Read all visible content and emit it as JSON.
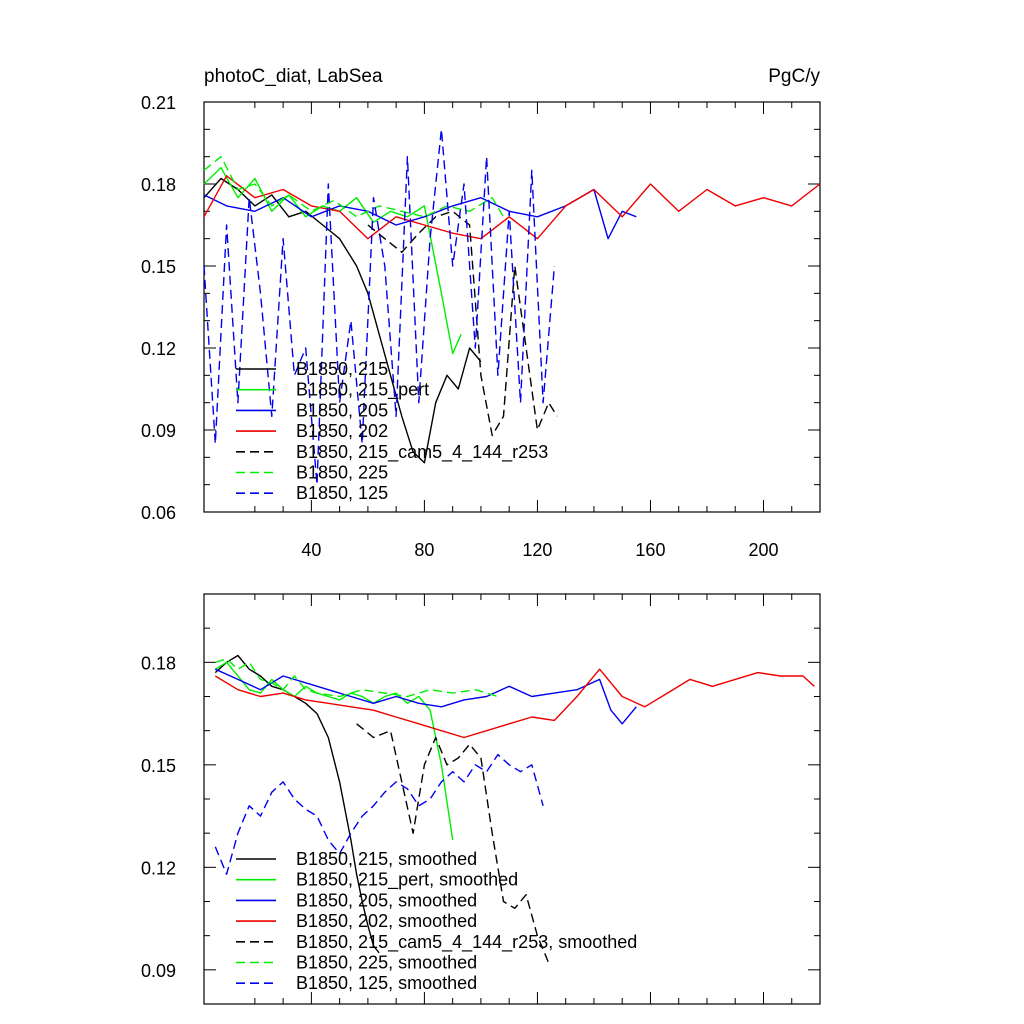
{
  "chart_data": [
    {
      "type": "line",
      "title": "photoC_diat, LabSea",
      "units": "PgC/y",
      "xlabel": "",
      "ylabel": "",
      "xlim": [
        2,
        220
      ],
      "ylim": [
        0.06,
        0.21
      ],
      "xticks": [
        "40",
        "80",
        "120",
        "160",
        "200"
      ],
      "yticks": [
        "0.06",
        "0.09",
        "0.12",
        "0.15",
        "0.18",
        "0.21"
      ],
      "legend_position": "bottom-left",
      "series": [
        {
          "name": "B1850, 215",
          "label": "B1850, 215",
          "color": "#000000",
          "dash": "solid",
          "x": [
            2,
            8,
            14,
            20,
            26,
            32,
            38,
            44,
            50,
            56,
            60,
            64,
            68,
            72,
            76,
            80,
            84,
            88,
            92,
            96,
            100
          ],
          "values": [
            0.175,
            0.182,
            0.178,
            0.172,
            0.176,
            0.168,
            0.17,
            0.165,
            0.16,
            0.15,
            0.14,
            0.125,
            0.11,
            0.095,
            0.082,
            0.078,
            0.1,
            0.11,
            0.105,
            0.12,
            0.115
          ]
        },
        {
          "name": "B1850, 215_pert",
          "label": "B1850, 215_pert",
          "color": "#00ee00",
          "dash": "solid",
          "x": [
            2,
            8,
            14,
            20,
            26,
            32,
            38,
            44,
            50,
            56,
            62,
            68,
            74,
            80,
            86,
            90,
            93
          ],
          "values": [
            0.18,
            0.186,
            0.175,
            0.182,
            0.17,
            0.176,
            0.168,
            0.172,
            0.17,
            0.175,
            0.166,
            0.17,
            0.168,
            0.172,
            0.14,
            0.118,
            0.125
          ]
        },
        {
          "name": "B1850, 205",
          "label": "B1850, 205",
          "color": "#0000ee",
          "dash": "solid",
          "x": [
            2,
            10,
            20,
            30,
            40,
            50,
            60,
            70,
            80,
            90,
            100,
            110,
            120,
            130,
            140,
            145,
            150,
            155
          ],
          "values": [
            0.176,
            0.172,
            0.17,
            0.175,
            0.168,
            0.172,
            0.17,
            0.165,
            0.168,
            0.172,
            0.175,
            0.17,
            0.168,
            0.172,
            0.178,
            0.16,
            0.17,
            0.168
          ]
        },
        {
          "name": "B1850, 202",
          "label": "B1850, 202",
          "color": "#ee0000",
          "dash": "solid",
          "x": [
            2,
            10,
            20,
            30,
            40,
            50,
            60,
            70,
            80,
            90,
            100,
            110,
            120,
            130,
            140,
            150,
            160,
            170,
            180,
            190,
            200,
            210,
            220
          ],
          "values": [
            0.168,
            0.183,
            0.175,
            0.178,
            0.172,
            0.17,
            0.16,
            0.168,
            0.165,
            0.162,
            0.16,
            0.168,
            0.16,
            0.172,
            0.178,
            0.168,
            0.18,
            0.17,
            0.178,
            0.172,
            0.175,
            0.172,
            0.18
          ]
        },
        {
          "name": "B1850, 215_cam5_4_144_r253",
          "label": "B1850, 215_cam5_4_144_r253",
          "color": "#000000",
          "dash": "dashed",
          "x": [
            60,
            66,
            72,
            78,
            84,
            90,
            96,
            100,
            104,
            108,
            112,
            116,
            120,
            124,
            127
          ],
          "values": [
            0.165,
            0.16,
            0.155,
            0.162,
            0.168,
            0.17,
            0.165,
            0.11,
            0.088,
            0.095,
            0.15,
            0.12,
            0.09,
            0.1,
            0.095
          ]
        },
        {
          "name": "B1850, 225",
          "label": "B1850, 225",
          "color": "#00ee00",
          "dash": "dashed",
          "x": [
            2,
            8,
            14,
            20,
            26,
            32,
            40,
            48,
            56,
            64,
            72,
            80,
            88,
            96,
            104,
            108
          ],
          "values": [
            0.185,
            0.19,
            0.178,
            0.18,
            0.172,
            0.176,
            0.17,
            0.174,
            0.168,
            0.172,
            0.17,
            0.168,
            0.172,
            0.17,
            0.175,
            0.168
          ]
        },
        {
          "name": "B1850, 125",
          "label": "B1850, 125",
          "color": "#0000ee",
          "dash": "dashed",
          "x": [
            2,
            6,
            10,
            14,
            18,
            22,
            26,
            30,
            34,
            38,
            42,
            46,
            50,
            54,
            58,
            62,
            66,
            70,
            74,
            78,
            82,
            86,
            90,
            94,
            98,
            102,
            106,
            110,
            114,
            118,
            122,
            126
          ],
          "values": [
            0.15,
            0.085,
            0.165,
            0.1,
            0.175,
            0.14,
            0.095,
            0.16,
            0.11,
            0.12,
            0.07,
            0.18,
            0.1,
            0.13,
            0.085,
            0.175,
            0.15,
            0.095,
            0.19,
            0.1,
            0.16,
            0.2,
            0.15,
            0.18,
            0.12,
            0.19,
            0.11,
            0.17,
            0.1,
            0.185,
            0.1,
            0.15
          ]
        }
      ]
    },
    {
      "type": "line",
      "title": "",
      "xlabel": "",
      "ylabel": "",
      "xlim": [
        2,
        220
      ],
      "ylim": [
        0.08,
        0.2
      ],
      "yticks": [
        "0.09",
        "0.12",
        "0.15",
        "0.18"
      ],
      "legend_position": "bottom-left",
      "series": [
        {
          "name": "B1850, 215, smoothed",
          "label": "B1850, 215, smoothed",
          "color": "#000000",
          "dash": "solid",
          "x": [
            6,
            10,
            14,
            18,
            22,
            26,
            30,
            34,
            38,
            42,
            46,
            50,
            54,
            56,
            58,
            60,
            62,
            64
          ],
          "values": [
            0.177,
            0.18,
            0.182,
            0.178,
            0.176,
            0.173,
            0.172,
            0.17,
            0.168,
            0.165,
            0.158,
            0.145,
            0.128,
            0.118,
            0.11,
            0.103,
            0.097,
            0.095
          ]
        },
        {
          "name": "B1850, 215_pert, smoothed",
          "label": "B1850, 215_pert, smoothed",
          "color": "#00ee00",
          "dash": "solid",
          "x": [
            6,
            10,
            14,
            18,
            22,
            26,
            30,
            34,
            38,
            42,
            46,
            50,
            54,
            58,
            62,
            66,
            70,
            74,
            78,
            82,
            86,
            90
          ],
          "values": [
            0.178,
            0.18,
            0.176,
            0.172,
            0.171,
            0.175,
            0.172,
            0.17,
            0.173,
            0.171,
            0.17,
            0.169,
            0.171,
            0.17,
            0.168,
            0.17,
            0.171,
            0.168,
            0.17,
            0.166,
            0.15,
            0.128
          ]
        },
        {
          "name": "B1850, 205, smoothed",
          "label": "B1850, 205, smoothed",
          "color": "#0000ee",
          "dash": "solid",
          "x": [
            6,
            14,
            22,
            30,
            38,
            46,
            54,
            62,
            70,
            78,
            86,
            94,
            102,
            110,
            118,
            126,
            134,
            142,
            146,
            150,
            155
          ],
          "values": [
            0.178,
            0.175,
            0.172,
            0.176,
            0.174,
            0.172,
            0.17,
            0.168,
            0.17,
            0.168,
            0.167,
            0.169,
            0.17,
            0.173,
            0.17,
            0.171,
            0.172,
            0.175,
            0.166,
            0.162,
            0.167
          ]
        },
        {
          "name": "B1850, 202, smoothed",
          "label": "B1850, 202, smoothed",
          "color": "#ee0000",
          "dash": "solid",
          "x": [
            6,
            14,
            22,
            30,
            38,
            46,
            54,
            62,
            70,
            78,
            86,
            94,
            102,
            110,
            118,
            126,
            134,
            142,
            150,
            158,
            166,
            174,
            182,
            190,
            198,
            206,
            214,
            218
          ],
          "values": [
            0.176,
            0.172,
            0.17,
            0.171,
            0.169,
            0.168,
            0.167,
            0.166,
            0.164,
            0.162,
            0.16,
            0.158,
            0.16,
            0.162,
            0.164,
            0.163,
            0.17,
            0.178,
            0.17,
            0.167,
            0.171,
            0.175,
            0.173,
            0.175,
            0.177,
            0.176,
            0.176,
            0.173
          ]
        },
        {
          "name": "B1850, 215_cam5_4_144_r253, smoothed",
          "label": "B1850, 215_cam5_4_144_r253, smoothed",
          "color": "#000000",
          "dash": "dashed",
          "x": [
            56,
            62,
            68,
            72,
            76,
            80,
            84,
            88,
            92,
            96,
            100,
            104,
            108,
            112,
            116,
            120,
            124
          ],
          "values": [
            0.162,
            0.158,
            0.16,
            0.145,
            0.13,
            0.15,
            0.158,
            0.15,
            0.152,
            0.156,
            0.152,
            0.13,
            0.11,
            0.108,
            0.112,
            0.1,
            0.092
          ]
        },
        {
          "name": "B1850, 225, smoothed",
          "label": "B1850, 225, smoothed",
          "color": "#00ee00",
          "dash": "dashed",
          "x": [
            6,
            10,
            14,
            18,
            22,
            26,
            30,
            34,
            38,
            42,
            50,
            58,
            66,
            74,
            82,
            90,
            98,
            106
          ],
          "values": [
            0.18,
            0.181,
            0.178,
            0.18,
            0.175,
            0.174,
            0.172,
            0.176,
            0.172,
            0.171,
            0.17,
            0.172,
            0.171,
            0.17,
            0.172,
            0.171,
            0.172,
            0.17
          ]
        },
        {
          "name": "B1850, 125, smoothed",
          "label": "B1850, 125, smoothed",
          "color": "#0000ee",
          "dash": "dashed",
          "x": [
            6,
            10,
            14,
            18,
            22,
            26,
            30,
            34,
            38,
            42,
            46,
            50,
            54,
            58,
            62,
            66,
            70,
            74,
            78,
            82,
            86,
            90,
            94,
            98,
            102,
            106,
            110,
            114,
            118,
            122
          ],
          "values": [
            0.126,
            0.118,
            0.13,
            0.138,
            0.135,
            0.142,
            0.145,
            0.14,
            0.137,
            0.135,
            0.128,
            0.124,
            0.13,
            0.135,
            0.138,
            0.142,
            0.145,
            0.143,
            0.138,
            0.14,
            0.145,
            0.148,
            0.145,
            0.15,
            0.148,
            0.153,
            0.15,
            0.148,
            0.15,
            0.138
          ]
        }
      ]
    }
  ]
}
